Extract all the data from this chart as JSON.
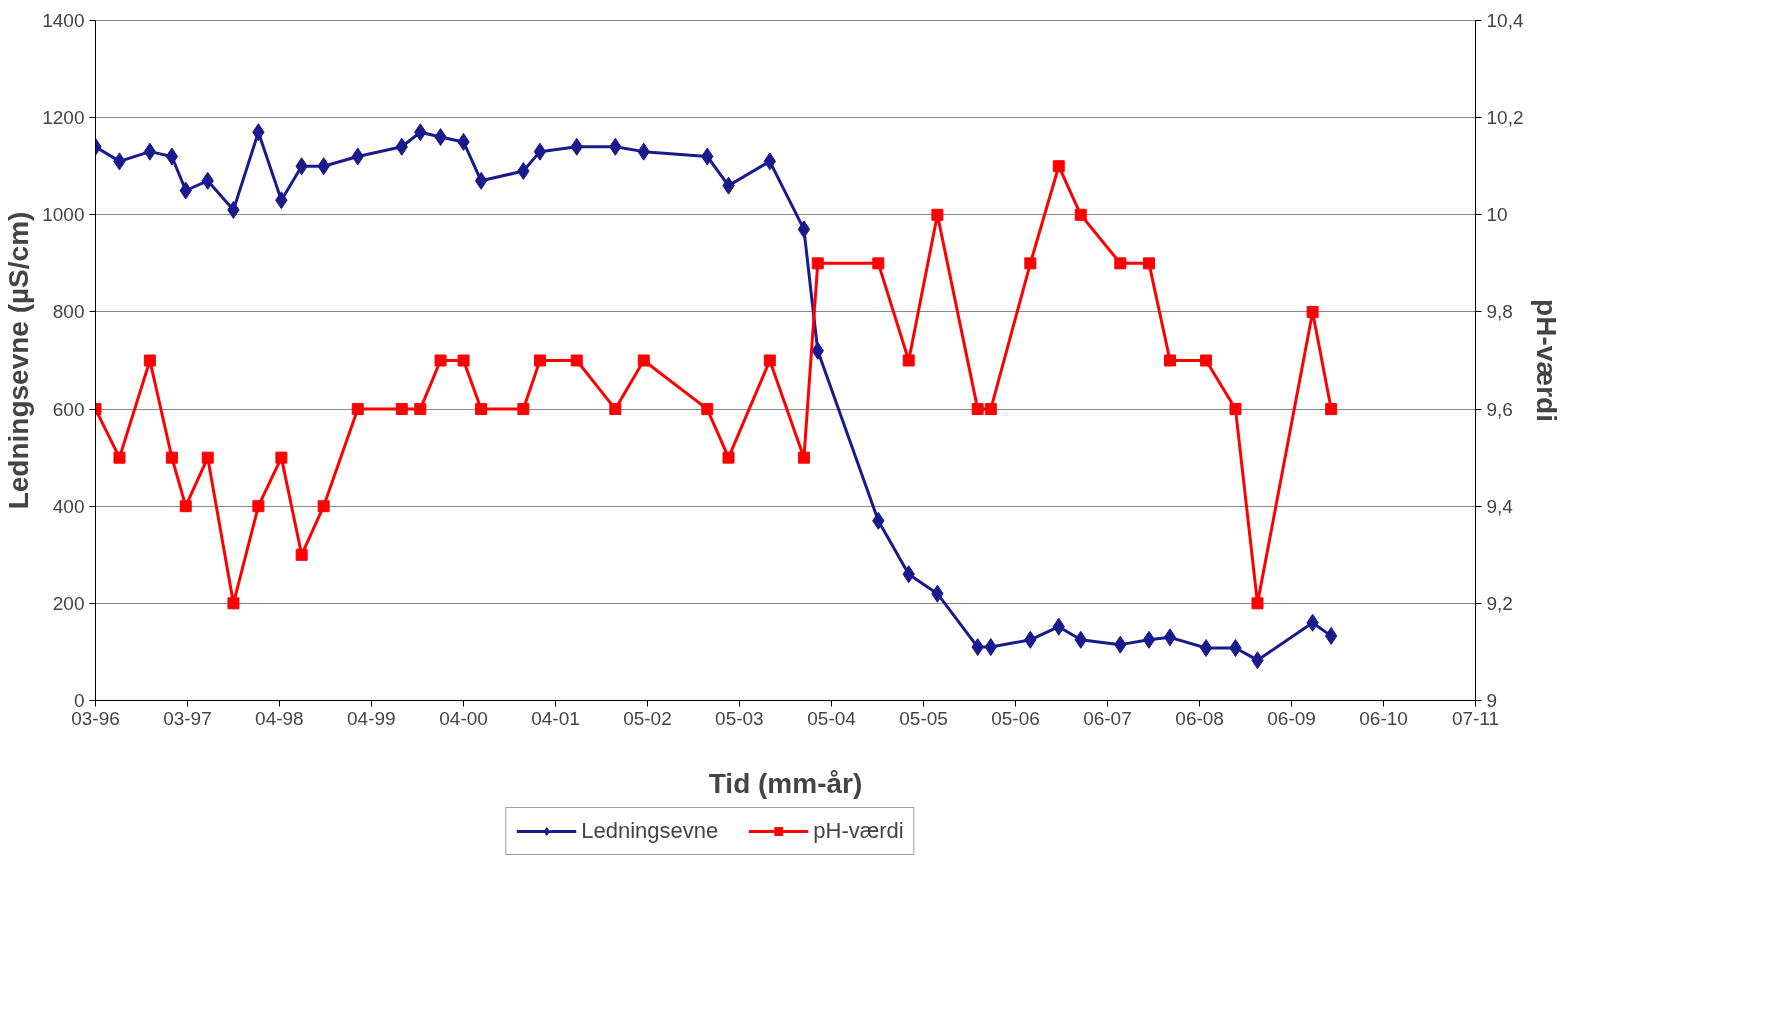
{
  "chart_data": {
    "type": "line",
    "xlabel": "Tid (mm-år)",
    "ylabel": "Ledningsevne (µS/cm)",
    "y2label": "pH-værdi",
    "x": [
      "1996-03-20",
      "1996-06-25",
      "1996-10-26",
      "1997-01-23",
      "1997-03-20",
      "1997-06-17",
      "1997-09-29",
      "1998-01-08",
      "1998-04-11",
      "1998-07-02",
      "1998-09-29",
      "1999-02-14",
      "1999-08-11",
      "1999-10-25",
      "2000-01-15",
      "2000-04-17",
      "2000-06-27",
      "2000-12-15",
      "2001-02-20",
      "2001-07-19",
      "2001-12-22",
      "2002-04-16",
      "2002-12-29",
      "2003-03-25",
      "2003-09-08",
      "2004-01-24",
      "2004-03-20",
      "2004-11-20",
      "2005-03-23",
      "2005-07-17",
      "2005-12-27",
      "2006-02-18",
      "2006-07-28",
      "2006-11-20",
      "2007-02-17",
      "2007-07-27",
      "2007-11-20",
      "2008-02-13",
      "2008-07-08",
      "2008-11-04",
      "2009-02-01",
      "2009-09-12",
      "2009-11-26"
    ],
    "xlim": [
      "1996-03-20",
      "2011-07-03"
    ],
    "xticks": [
      {
        "value": "1996-03-20",
        "label": "03-96"
      },
      {
        "value": "1997-03-27",
        "label": "03-97"
      },
      {
        "value": "1998-04-03",
        "label": "04-98"
      },
      {
        "value": "1999-04-10",
        "label": "04-99"
      },
      {
        "value": "2000-04-17",
        "label": "04-00"
      },
      {
        "value": "2001-04-24",
        "label": "04-01"
      },
      {
        "value": "2002-05-01",
        "label": "05-02"
      },
      {
        "value": "2003-05-08",
        "label": "05-03"
      },
      {
        "value": "2004-05-15",
        "label": "05-04"
      },
      {
        "value": "2005-05-22",
        "label": "05-05"
      },
      {
        "value": "2006-05-29",
        "label": "05-06"
      },
      {
        "value": "2007-06-05",
        "label": "06-07"
      },
      {
        "value": "2008-06-12",
        "label": "06-08"
      },
      {
        "value": "2009-06-19",
        "label": "06-09"
      },
      {
        "value": "2010-06-26",
        "label": "06-10"
      },
      {
        "value": "2011-07-03",
        "label": "07-11"
      }
    ],
    "ylim": [
      0,
      1400
    ],
    "yticks": [
      0,
      200,
      400,
      600,
      800,
      1000,
      1200,
      1400
    ],
    "y2lim": [
      9,
      10.4
    ],
    "y2ticks": [
      9,
      {
        "value": 9.2,
        "label": "9,2"
      },
      {
        "value": 9.4,
        "label": "9,4"
      },
      {
        "value": 9.6,
        "label": "9,6"
      },
      {
        "value": 9.8,
        "label": "9,8"
      },
      10,
      {
        "value": 10.2,
        "label": "10,2"
      },
      {
        "value": 10.4,
        "label": "10,4"
      }
    ],
    "grid": "y",
    "legend": "bottom",
    "line_style": "solid",
    "series": [
      {
        "name": "Ledningsevne",
        "color": "#1a1a8c",
        "marker": "diamond",
        "values": [
          1140,
          1110,
          1130,
          1120,
          1050,
          1070,
          1010,
          1170,
          1030,
          1100,
          1100,
          1120,
          1140,
          1170,
          1160,
          1150,
          1070,
          1090,
          1130,
          1140,
          1140,
          1130,
          1120,
          1060,
          1110,
          970,
          720,
          370,
          260,
          220,
          110,
          110,
          125,
          152,
          125,
          115,
          125,
          130,
          108,
          108,
          83,
          160,
          133
        ]
      },
      {
        "name": "pH-værdi",
        "color": "#ff0000",
        "marker": "square",
        "axis": "y2",
        "values": [
          9.6,
          9.5,
          9.7,
          9.5,
          9.4,
          9.5,
          9.2,
          9.4,
          9.5,
          9.3,
          9.4,
          9.6,
          9.6,
          9.6,
          9.7,
          9.7,
          9.6,
          9.6,
          9.7,
          9.7,
          9.6,
          9.7,
          9.6,
          9.5,
          9.7,
          9.5,
          9.9,
          9.9,
          9.7,
          10.0,
          9.6,
          9.6,
          9.9,
          10.1,
          10.0,
          9.9,
          9.9,
          9.7,
          9.7,
          9.6,
          9.2,
          9.8,
          9.6
        ]
      }
    ]
  }
}
